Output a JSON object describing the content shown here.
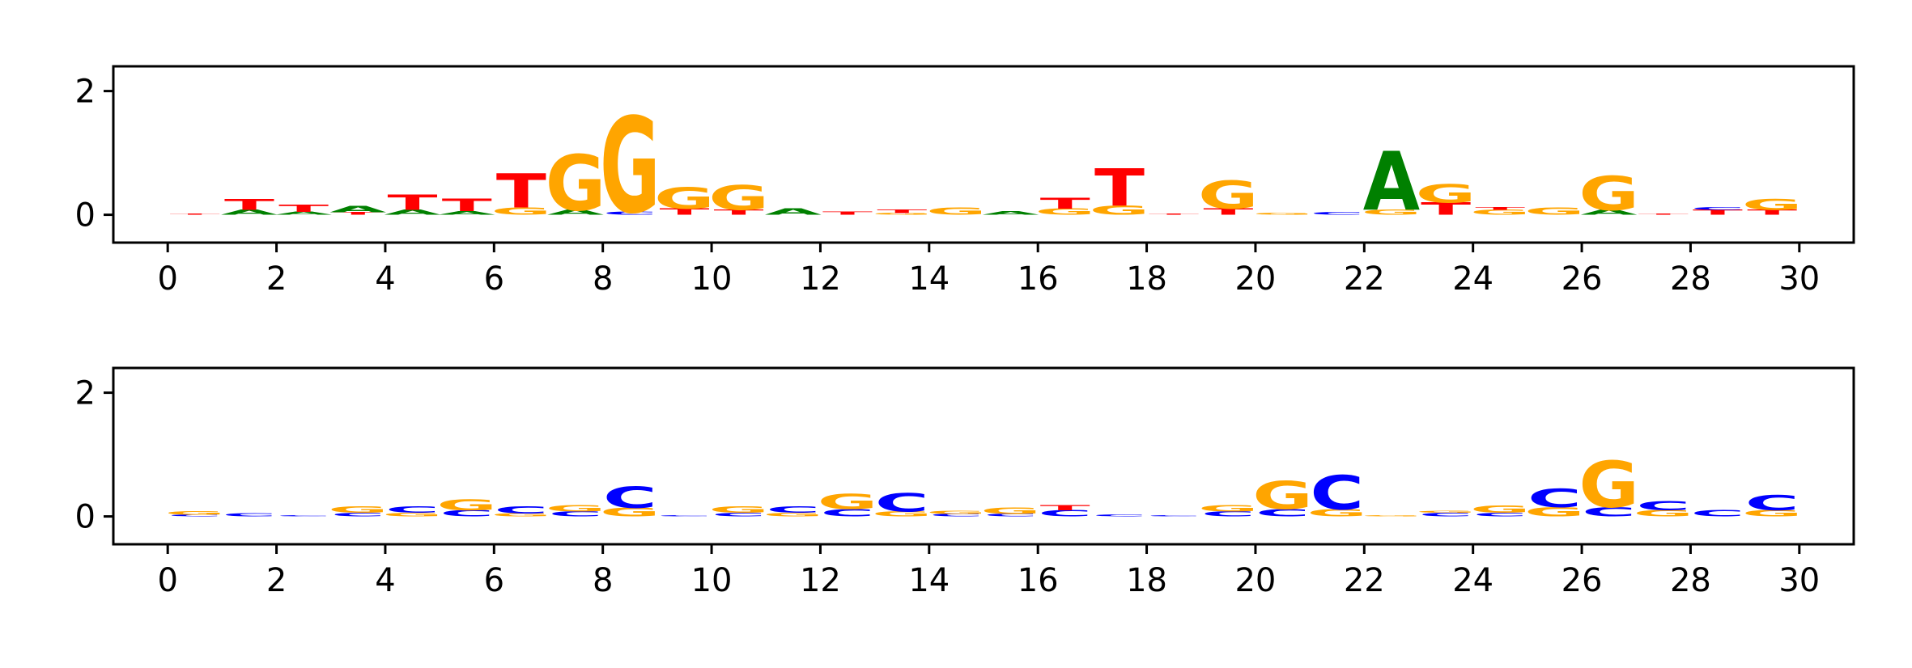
{
  "chart_data": [
    {
      "type": "sequence-logo",
      "xlim": [
        -1,
        31
      ],
      "ylim": [
        -0.45,
        2.4
      ],
      "xticks": [
        "0",
        "2",
        "4",
        "6",
        "8",
        "10",
        "12",
        "14",
        "16",
        "18",
        "20",
        "22",
        "24",
        "26",
        "28",
        "30"
      ],
      "yticks": [
        "0",
        "2"
      ],
      "letter_colors": {
        "A": "#008000",
        "C": "#0000ff",
        "G": "#ffa500",
        "T": "#ff0000"
      },
      "positions": [
        {
          "x": 0,
          "letters": [
            [
              "T",
              0.02
            ]
          ]
        },
        {
          "x": 1,
          "letters": [
            [
              "A",
              0.08
            ],
            [
              "T",
              0.18
            ]
          ]
        },
        {
          "x": 2,
          "letters": [
            [
              "A",
              0.05
            ],
            [
              "T",
              0.12
            ]
          ]
        },
        {
          "x": 3,
          "letters": [
            [
              "T",
              0.04
            ],
            [
              "A",
              0.1
            ]
          ]
        },
        {
          "x": 4,
          "letters": [
            [
              "A",
              0.08
            ],
            [
              "T",
              0.25
            ]
          ]
        },
        {
          "x": 5,
          "letters": [
            [
              "A",
              0.06
            ],
            [
              "T",
              0.2
            ]
          ]
        },
        {
          "x": 6,
          "letters": [
            [
              "G",
              0.12
            ],
            [
              "T",
              0.55
            ]
          ]
        },
        {
          "x": 7,
          "letters": [
            [
              "A",
              0.08
            ],
            [
              "G",
              0.9
            ]
          ]
        },
        {
          "x": 8,
          "letters": [
            [
              "C",
              0.05
            ],
            [
              "G",
              1.55
            ]
          ]
        },
        {
          "x": 9,
          "letters": [
            [
              "T",
              0.1
            ],
            [
              "G",
              0.35
            ]
          ]
        },
        {
          "x": 10,
          "letters": [
            [
              "T",
              0.08
            ],
            [
              "G",
              0.4
            ]
          ]
        },
        {
          "x": 11,
          "letters": [
            [
              "A",
              0.1
            ]
          ]
        },
        {
          "x": 12,
          "letters": [
            [
              "T",
              0.05
            ]
          ]
        },
        {
          "x": 13,
          "letters": [
            [
              "G",
              0.03
            ],
            [
              "T",
              0.06
            ]
          ]
        },
        {
          "x": 14,
          "letters": [
            [
              "G",
              0.12
            ]
          ]
        },
        {
          "x": 15,
          "letters": [
            [
              "A",
              0.06
            ]
          ]
        },
        {
          "x": 16,
          "letters": [
            [
              "G",
              0.1
            ],
            [
              "T",
              0.18
            ]
          ]
        },
        {
          "x": 17,
          "letters": [
            [
              "G",
              0.15
            ],
            [
              "T",
              0.6
            ]
          ]
        },
        {
          "x": 18,
          "letters": [
            [
              "T",
              0.02
            ]
          ]
        },
        {
          "x": 19,
          "letters": [
            [
              "T",
              0.1
            ],
            [
              "G",
              0.45
            ]
          ]
        },
        {
          "x": 20,
          "letters": [
            [
              "G",
              0.03
            ]
          ]
        },
        {
          "x": 21,
          "letters": [
            [
              "C",
              0.04
            ]
          ]
        },
        {
          "x": 22,
          "letters": [
            [
              "G",
              0.08
            ],
            [
              "A",
              0.95
            ]
          ]
        },
        {
          "x": 23,
          "letters": [
            [
              "T",
              0.2
            ],
            [
              "G",
              0.3
            ]
          ]
        },
        {
          "x": 24,
          "letters": [
            [
              "G",
              0.08
            ],
            [
              "T",
              0.04
            ]
          ]
        },
        {
          "x": 25,
          "letters": [
            [
              "G",
              0.12
            ]
          ]
        },
        {
          "x": 26,
          "letters": [
            [
              "A",
              0.08
            ],
            [
              "G",
              0.55
            ]
          ]
        },
        {
          "x": 27,
          "letters": [
            [
              "T",
              0.02
            ]
          ]
        },
        {
          "x": 28,
          "letters": [
            [
              "T",
              0.08
            ],
            [
              "C",
              0.04
            ]
          ]
        },
        {
          "x": 29,
          "letters": [
            [
              "T",
              0.08
            ],
            [
              "G",
              0.18
            ]
          ]
        }
      ]
    },
    {
      "type": "sequence-logo",
      "xlim": [
        -1,
        31
      ],
      "ylim": [
        -0.45,
        2.4
      ],
      "xticks": [
        "0",
        "2",
        "4",
        "6",
        "8",
        "10",
        "12",
        "14",
        "16",
        "18",
        "20",
        "22",
        "24",
        "26",
        "28",
        "30"
      ],
      "yticks": [
        "0",
        "2"
      ],
      "letter_colors": {
        "A": "#008000",
        "C": "#0000ff",
        "G": "#ffa500",
        "T": "#ff0000"
      },
      "positions": [
        {
          "x": 0,
          "letters": [
            [
              "C",
              0.03
            ],
            [
              "G",
              0.06
            ]
          ]
        },
        {
          "x": 1,
          "letters": [
            [
              "C",
              0.05
            ]
          ]
        },
        {
          "x": 2,
          "letters": [
            [
              "C",
              0.02
            ]
          ]
        },
        {
          "x": 3,
          "letters": [
            [
              "C",
              0.06
            ],
            [
              "G",
              0.1
            ]
          ]
        },
        {
          "x": 4,
          "letters": [
            [
              "G",
              0.06
            ],
            [
              "C",
              0.1
            ]
          ]
        },
        {
          "x": 5,
          "letters": [
            [
              "C",
              0.1
            ],
            [
              "G",
              0.18
            ]
          ]
        },
        {
          "x": 6,
          "letters": [
            [
              "G",
              0.05
            ],
            [
              "C",
              0.12
            ]
          ]
        },
        {
          "x": 7,
          "letters": [
            [
              "C",
              0.08
            ],
            [
              "G",
              0.1
            ]
          ]
        },
        {
          "x": 8,
          "letters": [
            [
              "G",
              0.14
            ],
            [
              "C",
              0.35
            ]
          ]
        },
        {
          "x": 9,
          "letters": [
            [
              "C",
              0.02
            ]
          ]
        },
        {
          "x": 10,
          "letters": [
            [
              "C",
              0.06
            ],
            [
              "G",
              0.1
            ]
          ]
        },
        {
          "x": 11,
          "letters": [
            [
              "G",
              0.06
            ],
            [
              "C",
              0.1
            ]
          ]
        },
        {
          "x": 12,
          "letters": [
            [
              "C",
              0.12
            ],
            [
              "G",
              0.25
            ]
          ]
        },
        {
          "x": 13,
          "letters": [
            [
              "G",
              0.08
            ],
            [
              "C",
              0.3
            ]
          ]
        },
        {
          "x": 14,
          "letters": [
            [
              "C",
              0.04
            ],
            [
              "G",
              0.05
            ]
          ]
        },
        {
          "x": 15,
          "letters": [
            [
              "C",
              0.04
            ],
            [
              "G",
              0.1
            ]
          ]
        },
        {
          "x": 16,
          "letters": [
            [
              "C",
              0.1
            ],
            [
              "T",
              0.08
            ]
          ]
        },
        {
          "x": 17,
          "letters": [
            [
              "C",
              0.03
            ]
          ]
        },
        {
          "x": 18,
          "letters": [
            [
              "C",
              0.01
            ]
          ]
        },
        {
          "x": 19,
          "letters": [
            [
              "C",
              0.08
            ],
            [
              "G",
              0.1
            ]
          ]
        },
        {
          "x": 20,
          "letters": [
            [
              "C",
              0.12
            ],
            [
              "G",
              0.45
            ]
          ]
        },
        {
          "x": 21,
          "letters": [
            [
              "G",
              0.12
            ],
            [
              "C",
              0.55
            ]
          ]
        },
        {
          "x": 22,
          "letters": [
            [
              "G",
              0.02
            ]
          ]
        },
        {
          "x": 23,
          "letters": [
            [
              "C",
              0.06
            ],
            [
              "G",
              0.03
            ]
          ]
        },
        {
          "x": 24,
          "letters": [
            [
              "C",
              0.06
            ],
            [
              "G",
              0.12
            ]
          ]
        },
        {
          "x": 25,
          "letters": [
            [
              "G",
              0.15
            ],
            [
              "C",
              0.3
            ]
          ]
        },
        {
          "x": 26,
          "letters": [
            [
              "C",
              0.15
            ],
            [
              "G",
              0.75
            ]
          ]
        },
        {
          "x": 27,
          "letters": [
            [
              "G",
              0.1
            ],
            [
              "C",
              0.15
            ]
          ]
        },
        {
          "x": 28,
          "letters": [
            [
              "C",
              0.1
            ]
          ]
        },
        {
          "x": 29,
          "letters": [
            [
              "G",
              0.1
            ],
            [
              "C",
              0.25
            ]
          ]
        }
      ]
    }
  ]
}
